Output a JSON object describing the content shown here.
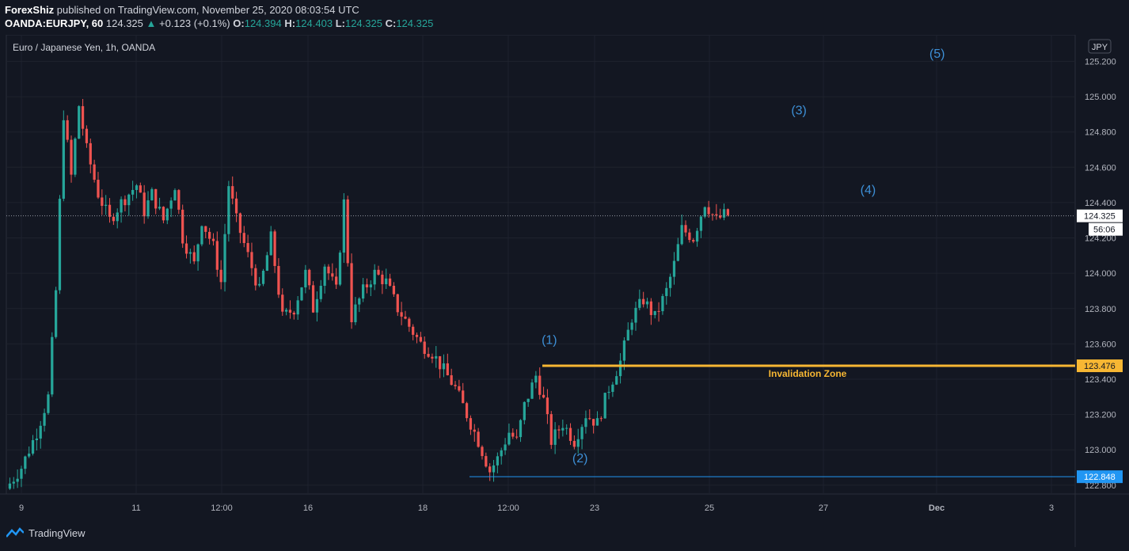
{
  "header": {
    "author": "ForexShiz",
    "published_text": "published on TradingView.com, November 25, 2020 08:03:54 UTC",
    "symbol": "OANDA:EURJPY, 60",
    "last_price": "124.325",
    "change_arrow": "▲",
    "change": "+0.123 (+0.1%)",
    "open_label": "O:",
    "open": "124.394",
    "high_label": "H:",
    "high": "124.403",
    "low_label": "L:",
    "low": "124.325",
    "close_label": "C:",
    "close": "124.325"
  },
  "chart_title": "Euro / Japanese Yen, 1h, OANDA",
  "currency_badge": "JPY",
  "colors": {
    "background": "#131722",
    "up": "#26a69a",
    "down": "#ef5350",
    "invalidation": "#f7b733",
    "low_line": "#2196f3",
    "wave_label": "#3d8fd6"
  },
  "footer": {
    "brand": "TradingView",
    "logo_icon": "tradingview-logo-icon"
  },
  "chart_data": {
    "type": "candlestick",
    "title": "Euro / Japanese Yen, 1h, OANDA",
    "ylim": [
      122.75,
      125.35
    ],
    "y_ticks": [
      122.8,
      123.0,
      123.2,
      123.4,
      123.6,
      123.8,
      124.0,
      124.2,
      124.4,
      124.6,
      124.8,
      125.0,
      125.2
    ],
    "y_tick_labels": [
      "122.800",
      "123.000",
      "123.200",
      "123.400",
      "123.600",
      "123.800",
      "124.000",
      "124.200",
      "124.400",
      "124.600",
      "124.800",
      "125.000",
      "125.200"
    ],
    "x_tick_labels": [
      "9",
      "11",
      "12:00",
      "16",
      "18",
      "12:00",
      "23",
      "25",
      "27",
      "Dec",
      "3"
    ],
    "grid": true,
    "price_path": [
      [
        0,
        122.78
      ],
      [
        4,
        122.9
      ],
      [
        8,
        123.1
      ],
      [
        11,
        123.3
      ],
      [
        13,
        123.9
      ],
      [
        15,
        124.9
      ],
      [
        17,
        124.55
      ],
      [
        19,
        124.95
      ],
      [
        21,
        124.7
      ],
      [
        24,
        124.45
      ],
      [
        27,
        124.3
      ],
      [
        30,
        124.4
      ],
      [
        34,
        124.5
      ],
      [
        36,
        124.35
      ],
      [
        38,
        124.45
      ],
      [
        41,
        124.3
      ],
      [
        44,
        124.5
      ],
      [
        46,
        124.2
      ],
      [
        49,
        124.05
      ],
      [
        51,
        124.3
      ],
      [
        54,
        124.15
      ],
      [
        56,
        123.95
      ],
      [
        58,
        124.5
      ],
      [
        60,
        124.3
      ],
      [
        63,
        124.1
      ],
      [
        66,
        123.9
      ],
      [
        69,
        124.2
      ],
      [
        72,
        123.75
      ],
      [
        75,
        123.8
      ],
      [
        78,
        124.0
      ],
      [
        80,
        123.8
      ],
      [
        83,
        124.05
      ],
      [
        86,
        123.9
      ],
      [
        88,
        124.4
      ],
      [
        90,
        123.75
      ],
      [
        93,
        123.9
      ],
      [
        96,
        124.0
      ],
      [
        99,
        123.95
      ],
      [
        102,
        123.8
      ],
      [
        105,
        123.7
      ],
      [
        108,
        123.6
      ],
      [
        111,
        123.55
      ],
      [
        114,
        123.45
      ],
      [
        117,
        123.35
      ],
      [
        120,
        123.2
      ],
      [
        123,
        123.05
      ],
      [
        126,
        122.88
      ],
      [
        128,
        122.95
      ],
      [
        131,
        123.1
      ],
      [
        133,
        123.05
      ],
      [
        135,
        123.25
      ],
      [
        138,
        123.42
      ],
      [
        140,
        123.28
      ],
      [
        142,
        123.05
      ],
      [
        145,
        123.15
      ],
      [
        148,
        123.05
      ],
      [
        151,
        123.2
      ],
      [
        154,
        123.15
      ],
      [
        157,
        123.35
      ],
      [
        160,
        123.5
      ],
      [
        163,
        123.75
      ],
      [
        166,
        123.85
      ],
      [
        169,
        123.75
      ],
      [
        172,
        123.9
      ],
      [
        174,
        124.05
      ],
      [
        176,
        124.25
      ],
      [
        179,
        124.2
      ],
      [
        182,
        124.4
      ],
      [
        185,
        124.3
      ],
      [
        187,
        124.33
      ]
    ],
    "total_bars": 188,
    "horizontal_lines": [
      {
        "value": 123.476,
        "label": "123.476",
        "text": "Invalidation Zone",
        "color": "#f7b733"
      },
      {
        "value": 122.848,
        "label": "122.848",
        "color": "#2196f3"
      }
    ],
    "current_price": {
      "value": 124.325,
      "label": "124.325",
      "countdown": "56:06"
    },
    "wave_labels": [
      {
        "text": "(1)",
        "x_bar": 141,
        "y": 123.6
      },
      {
        "text": "(2)",
        "x_bar": 149,
        "y": 122.93
      },
      {
        "text": "(3)",
        "x_bar": 206,
        "y": 124.9
      },
      {
        "text": "(4)",
        "x_bar": 224,
        "y": 124.45
      },
      {
        "text": "(5)",
        "x_bar": 242,
        "y": 125.22
      }
    ]
  }
}
